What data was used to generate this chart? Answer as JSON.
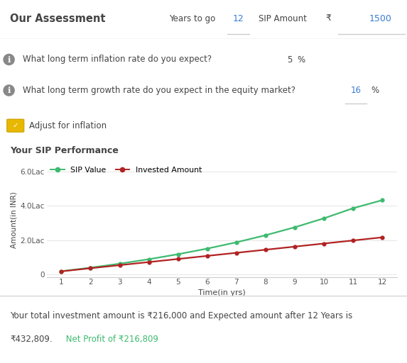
{
  "title_header": "Our Assessment",
  "years_to_go_label": "Years to go",
  "years_to_go_value": "12",
  "sip_amount_label": "SIP Amount",
  "rupee_symbol": "₹",
  "sip_amount_value": "1500",
  "q1_label": "What long term inflation rate do you expect?",
  "q1_value": "5",
  "q1_unit": "%",
  "q2_label": "What long term growth rate do you expect in the equity market?",
  "q2_value": "16",
  "q2_unit": "%",
  "adjust_label": "Adjust for inflation",
  "chart_title": "Your SIP Performance",
  "x_label": "Time(in yrs)",
  "y_label": "Amount(in INR)",
  "legend_sip": "SIP Value",
  "legend_inv": "Invested Amount",
  "x_values": [
    1,
    2,
    3,
    4,
    5,
    6,
    7,
    8,
    9,
    10,
    11,
    12
  ],
  "sip_values": [
    0.186,
    0.394,
    0.626,
    0.886,
    1.178,
    1.505,
    1.872,
    2.284,
    2.748,
    3.27,
    3.858,
    4.328
  ],
  "invested_values": [
    0.18,
    0.36,
    0.54,
    0.72,
    0.9,
    1.08,
    1.26,
    1.44,
    1.62,
    1.8,
    1.98,
    2.16
  ],
  "sip_color": "#3dba6f",
  "invested_color": "#b22222",
  "y_ticks": [
    0,
    2.0,
    4.0,
    6.0
  ],
  "y_tick_labels": [
    "0",
    "2.0Lac",
    "4.0Lac",
    "6.0Lac"
  ],
  "footer_line1": "Your total investment amount is ₹216,000 and Expected amount after 12 Years is",
  "footer_line2_black": "₹432,809.",
  "footer_line2_green": " Net Profit of ₹216,809",
  "bg_header": "#f2f2f2",
  "bg_main": "#ffffff",
  "bg_footer": "#ebebeb",
  "border_color": "#d0d0d0",
  "text_dark": "#444444",
  "text_blue": "#3a7bd5",
  "text_green": "#3dba6f",
  "checkbox_fill": "#e8b800",
  "checkbox_border": "#c9a000",
  "grid_color": "#e8e8e8",
  "axis_line_color": "#cccccc",
  "info_color": "#666666"
}
